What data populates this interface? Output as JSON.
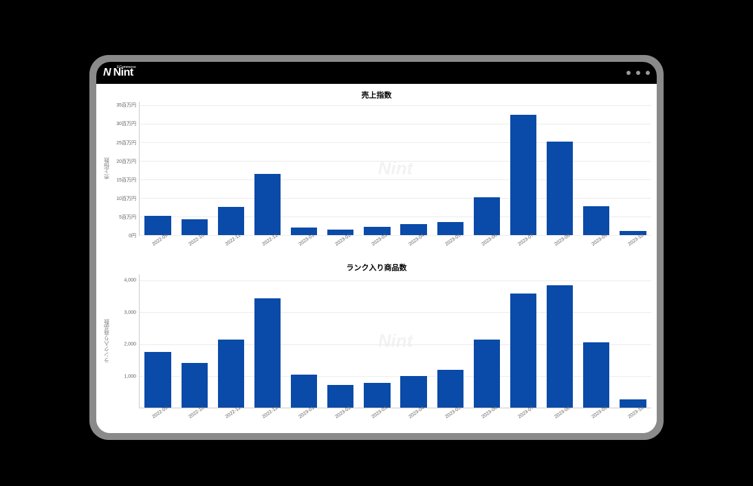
{
  "brand": {
    "sub": "ECommerce",
    "name": "Nint"
  },
  "watermark_text": "Nint",
  "chart1": {
    "type": "bar",
    "title": "売上指数",
    "y_axis_label": "売上指数",
    "bar_color": "#0a4aa8",
    "background_color": "#ffffff",
    "grid_color": "#ececec",
    "axis_color": "#cccccc",
    "tick_font_size": 7,
    "title_font_size": 11,
    "bar_width_pct": 72,
    "ylim_min": 0,
    "ylim_max": 36,
    "y_ticks": [
      {
        "v": 0,
        "label": "0円"
      },
      {
        "v": 5,
        "label": "5百万円"
      },
      {
        "v": 10,
        "label": "10百万円"
      },
      {
        "v": 15,
        "label": "15百万円"
      },
      {
        "v": 20,
        "label": "20百万円"
      },
      {
        "v": 25,
        "label": "25百万円"
      },
      {
        "v": 30,
        "label": "30百万円"
      },
      {
        "v": 35,
        "label": "35百万円"
      }
    ],
    "categories": [
      "2022-09",
      "2022-10",
      "2022-11",
      "2022-12",
      "2023-01",
      "2023-02",
      "2023-03",
      "2023-04",
      "2023-05",
      "2023-06",
      "2023-07",
      "2023-08",
      "2023-09",
      "2023-10"
    ],
    "values": [
      5.2,
      4.2,
      7.6,
      16.5,
      2.0,
      1.4,
      2.2,
      3.0,
      3.6,
      10.3,
      32.5,
      25.2,
      7.8,
      1.2
    ]
  },
  "chart2": {
    "type": "bar",
    "title": "ランク入り商品数",
    "y_axis_label": "ランク入り商品数",
    "bar_color": "#0a4aa8",
    "background_color": "#ffffff",
    "grid_color": "#ececec",
    "axis_color": "#cccccc",
    "tick_font_size": 7,
    "title_font_size": 11,
    "bar_width_pct": 72,
    "ylim_min": 0,
    "ylim_max": 4200,
    "y_ticks": [
      {
        "v": 1000,
        "label": "1,000"
      },
      {
        "v": 2000,
        "label": "2,000"
      },
      {
        "v": 3000,
        "label": "3,000"
      },
      {
        "v": 4000,
        "label": "4,000"
      }
    ],
    "categories": [
      "2022-09",
      "2022-10",
      "2022-11",
      "2022-12",
      "2023-01",
      "2023-02",
      "2023-03",
      "2023-04",
      "2023-05",
      "2023-06",
      "2023-07",
      "2023-08",
      "2023-09",
      "2023-10"
    ],
    "values": [
      1750,
      1400,
      2150,
      3450,
      1050,
      720,
      780,
      1000,
      1200,
      2150,
      3600,
      3850,
      2050,
      260
    ]
  }
}
